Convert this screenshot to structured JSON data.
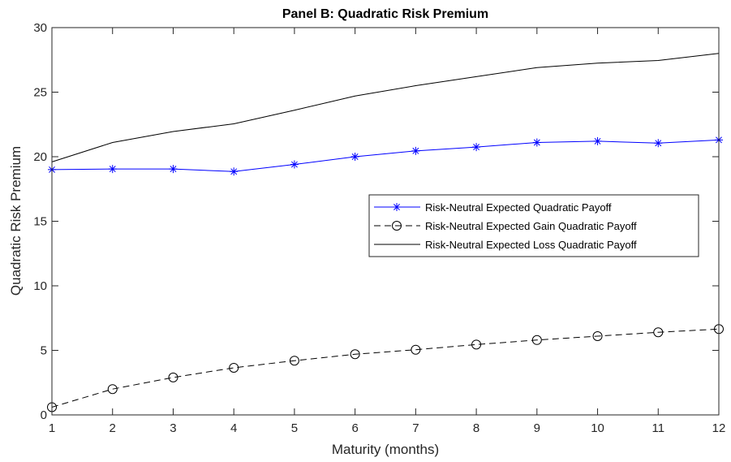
{
  "chart_data": {
    "type": "line",
    "title": "Panel B: Quadratic Risk Premium",
    "xlabel": "Maturity (months)",
    "ylabel": "Quadratic Risk Premium",
    "x": [
      1,
      2,
      3,
      4,
      5,
      6,
      7,
      8,
      9,
      10,
      11,
      12
    ],
    "xlim": [
      1,
      12
    ],
    "ylim": [
      0,
      30
    ],
    "xticks": [
      "1",
      "2",
      "3",
      "4",
      "5",
      "6",
      "7",
      "8",
      "9",
      "10",
      "11",
      "12"
    ],
    "yticks": [
      "0",
      "5",
      "10",
      "15",
      "20",
      "25",
      "30"
    ],
    "grid": false,
    "legend_position": "center-right",
    "series": [
      {
        "name": "Risk-Neutral Expected Quadratic Payoff",
        "values": [
          19.0,
          19.05,
          19.05,
          18.85,
          19.4,
          20.0,
          20.45,
          20.75,
          21.1,
          21.2,
          21.05,
          21.3
        ],
        "color": "#0000ff",
        "line": "solid",
        "marker": "asterisk"
      },
      {
        "name": "Risk-Neutral Expected Gain Quadratic Payoff",
        "values": [
          0.6,
          2.0,
          2.9,
          3.65,
          4.2,
          4.7,
          5.05,
          5.45,
          5.8,
          6.1,
          6.4,
          6.65
        ],
        "color": "#000000",
        "line": "dashed",
        "marker": "circle"
      },
      {
        "name": "Risk-Neutral Expected Loss Quadratic Payoff",
        "values": [
          19.6,
          21.1,
          21.95,
          22.55,
          23.6,
          24.7,
          25.5,
          26.2,
          26.9,
          27.25,
          27.45,
          28.0
        ],
        "color": "#000000",
        "line": "solid",
        "marker": "none"
      }
    ]
  }
}
